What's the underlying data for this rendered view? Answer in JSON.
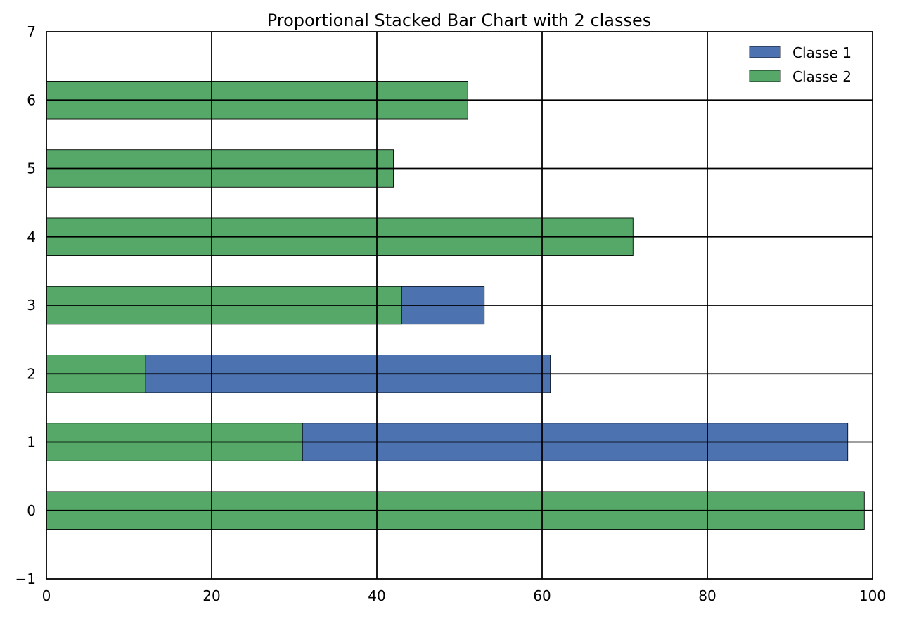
{
  "chart_data": {
    "type": "bar",
    "orientation": "horizontal",
    "stacked": true,
    "title": "Proportional Stacked Bar Chart with 2 classes",
    "xlabel": "",
    "ylabel": "",
    "categories": [
      "0",
      "1",
      "2",
      "3",
      "4",
      "5",
      "6"
    ],
    "y_positions": [
      0,
      1,
      2,
      3,
      4,
      5,
      6
    ],
    "series": [
      {
        "name": "Classe 1",
        "color": "#4c72b0",
        "values": [
          0,
          66,
          49,
          10,
          0,
          0,
          0
        ],
        "totals": [
          99,
          97,
          61,
          53,
          71,
          42,
          51
        ]
      },
      {
        "name": "Classe 2",
        "color": "#55a868",
        "values": [
          99,
          31,
          12,
          43,
          71,
          42,
          51
        ]
      }
    ],
    "xlim": [
      0,
      100
    ],
    "ylim": [
      -1,
      7
    ],
    "xticks": [
      0,
      20,
      40,
      60,
      80,
      100
    ],
    "xtick_labels": [
      "0",
      "20",
      "40",
      "60",
      "80",
      "100"
    ],
    "yticks": [
      -1,
      0,
      1,
      2,
      3,
      4,
      5,
      6,
      7
    ],
    "ytick_labels": [
      "−1",
      "0",
      "1",
      "2",
      "3",
      "4",
      "5",
      "6",
      "7"
    ],
    "grid": true,
    "legend_position": "top-right"
  }
}
